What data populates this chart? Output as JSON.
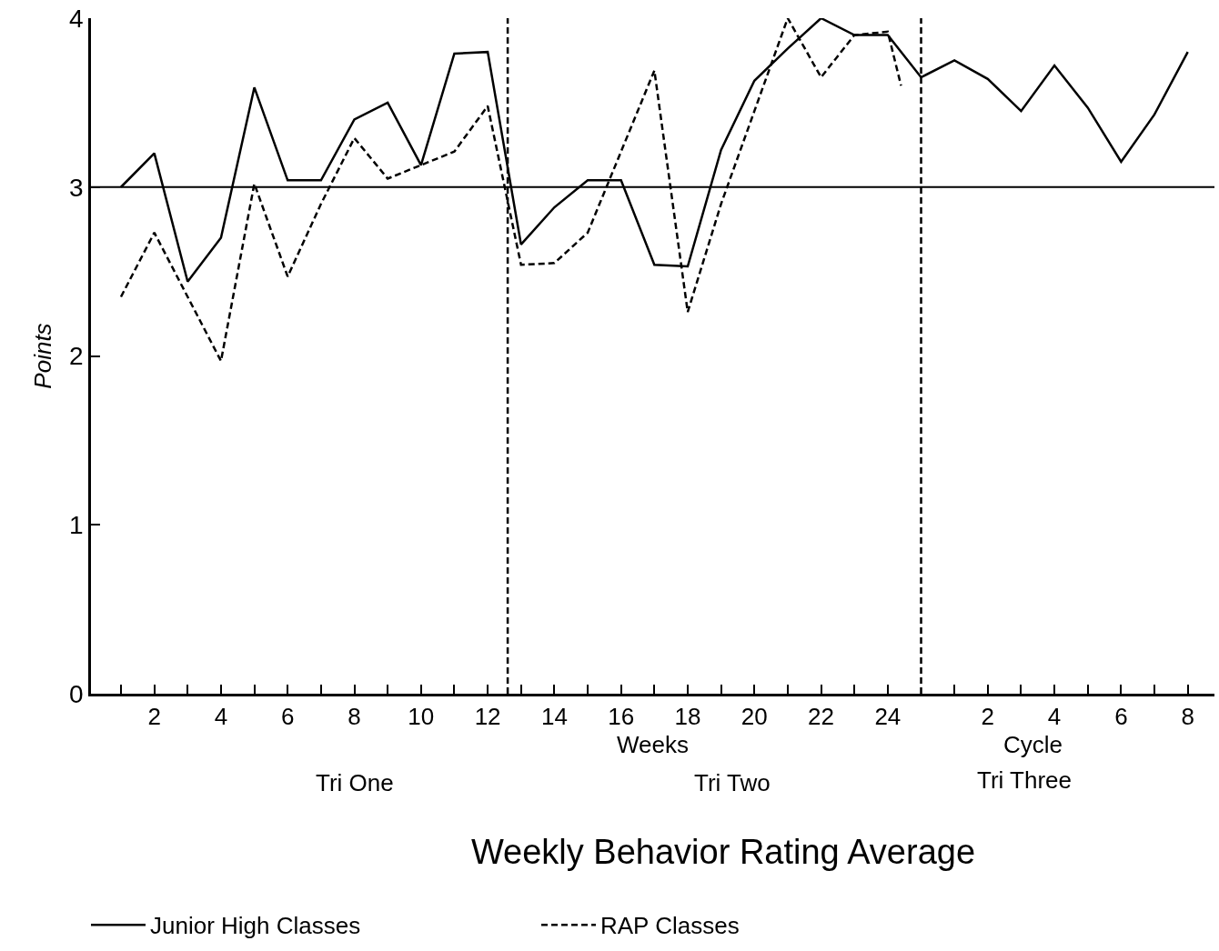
{
  "chart_data": {
    "type": "line",
    "title": "Weekly Behavior Rating Average",
    "xlabel": "Weeks",
    "ylabel": "Points",
    "annotations": [
      "Cycle",
      "Tri One",
      "Tri Two",
      "Tri Three"
    ],
    "series": [
      {
        "name": "Junior High Classes",
        "color": "#000000",
        "line_style": "solid",
        "x": [
          1,
          2,
          3,
          4,
          5,
          6,
          7,
          8,
          9,
          10,
          11,
          12,
          13,
          14,
          15,
          16,
          17,
          18,
          19,
          20,
          21,
          22,
          23,
          24,
          25,
          26,
          27,
          28,
          29,
          30,
          31,
          32,
          33
        ],
        "values": [
          3.0,
          3.2,
          2.44,
          2.7,
          3.59,
          3.04,
          3.04,
          3.4,
          3.5,
          3.13,
          3.79,
          3.8,
          2.66,
          2.88,
          3.04,
          3.04,
          2.54,
          2.53,
          3.22,
          3.63,
          3.82,
          4.0,
          3.9,
          3.9,
          3.65,
          3.75,
          3.64,
          3.45,
          3.72,
          3.47,
          3.15,
          3.43,
          3.8
        ]
      },
      {
        "name": "RAP Classes",
        "color": "#000000",
        "line_style": "dashed",
        "x": [
          1,
          2,
          3,
          4,
          5,
          6,
          7,
          8,
          9,
          10,
          11,
          12,
          13,
          14,
          15,
          16,
          17,
          18,
          19,
          20,
          21,
          22,
          23,
          24,
          24.4
        ],
        "values": [
          2.35,
          2.73,
          2.35,
          1.97,
          3.02,
          2.47,
          2.9,
          3.29,
          3.05,
          3.13,
          3.21,
          3.48,
          2.54,
          2.55,
          2.73,
          3.21,
          3.69,
          2.26,
          2.9,
          3.45,
          4.0,
          3.65,
          3.9,
          3.92,
          3.6
        ]
      }
    ],
    "ref_lines": [
      {
        "axis": "y",
        "value": 3,
        "line_style": "solid",
        "color": "#000000"
      },
      {
        "axis": "x",
        "value": 12.6,
        "line_style": "dashed",
        "color": "#000000"
      },
      {
        "axis": "x",
        "value": 25,
        "line_style": "dashed",
        "color": "#000000"
      }
    ],
    "xlim": [
      0.1,
      33.8
    ],
    "xticks": [
      {
        "value": 1,
        "label": null
      },
      2,
      {
        "value": 3,
        "label": null
      },
      4,
      {
        "value": 5,
        "label": null
      },
      6,
      {
        "value": 7,
        "label": null
      },
      8,
      {
        "value": 9,
        "label": null
      },
      10,
      {
        "value": 11,
        "label": null
      },
      12,
      {
        "value": 13,
        "label": null
      },
      14,
      {
        "value": 15,
        "label": null
      },
      16,
      {
        "value": 17,
        "label": null
      },
      18,
      {
        "value": 19,
        "label": null
      },
      20,
      {
        "value": 21,
        "label": null
      },
      22,
      {
        "value": 23,
        "label": null
      },
      24
    ],
    "x2lim": [
      -24.9,
      8.8
    ],
    "x2ticks": [
      {
        "value": 1,
        "label": null
      },
      2,
      {
        "value": 3,
        "label": null
      },
      4,
      {
        "value": 5,
        "label": null
      },
      6,
      {
        "value": 7,
        "label": null
      },
      8
    ],
    "ylim": [
      0,
      4
    ],
    "yticks": [
      0,
      1,
      2,
      3,
      4
    ],
    "legend": "bottom",
    "marker": "none"
  }
}
